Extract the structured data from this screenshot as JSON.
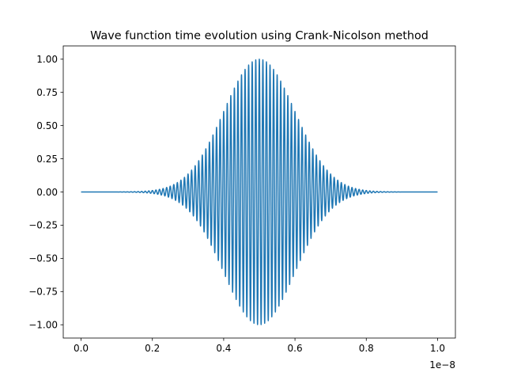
{
  "chart_data": {
    "type": "line",
    "title": "Wave function time evolution using Crank-Nicolson method",
    "xlabel": "",
    "ylabel": "",
    "x_offset_label": "1e−8",
    "xlim": [
      -0.05,
      1.05
    ],
    "ylim": [
      -1.1,
      1.1
    ],
    "x_ticks": [
      0.0,
      0.2,
      0.4,
      0.6,
      0.8,
      1.0
    ],
    "x_tick_labels": [
      "0.0",
      "0.2",
      "0.4",
      "0.6",
      "0.8",
      "1.0"
    ],
    "y_ticks": [
      -1.0,
      -0.75,
      -0.5,
      -0.25,
      0.0,
      0.25,
      0.5,
      0.75,
      1.0
    ],
    "y_tick_labels": [
      "−1.00",
      "−0.75",
      "−0.50",
      "−0.25",
      "0.00",
      "0.25",
      "0.50",
      "0.75",
      "1.00"
    ],
    "grid": false,
    "legend": "none",
    "series": [
      {
        "color": "#1f77b4",
        "x_range": [
          0.0,
          1.0
        ],
        "envelope": "gaussian",
        "amplitude": 1.0,
        "center": 0.5,
        "width_sigma": 0.1,
        "oscillations_per_unit": 100
      }
    ]
  }
}
